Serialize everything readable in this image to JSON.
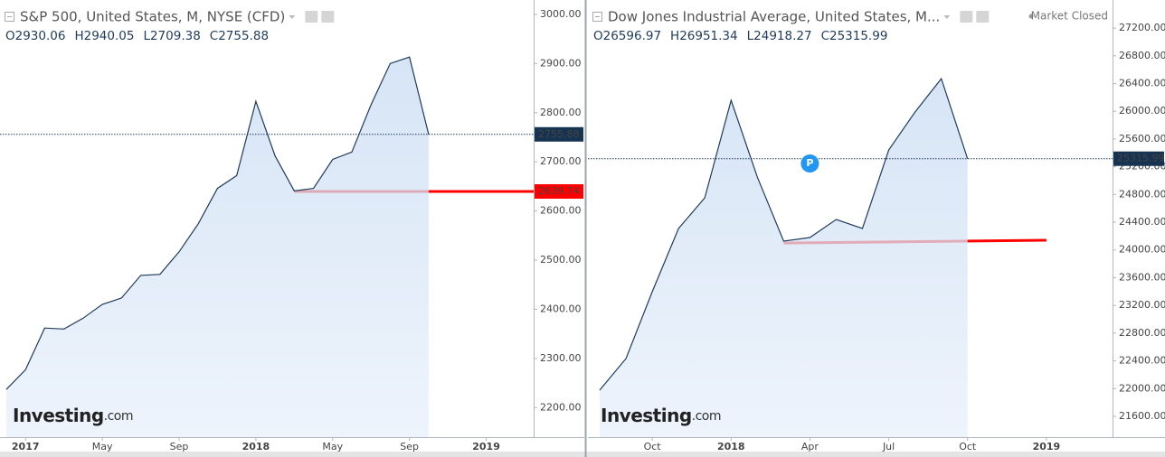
{
  "chart_data": [
    {
      "type": "area",
      "title": "S&P 500, United States, M, NYSE (CFD)",
      "ohlc": [
        "O2930.06",
        "H2940.05",
        "L2709.38",
        "C2755.88"
      ],
      "logo": "Investing",
      "logo_suffix": ".com",
      "x": [
        "2016-12",
        "2017-01",
        "2017-02",
        "2017-03",
        "2017-04",
        "2017-05",
        "2017-06",
        "2017-07",
        "2017-08",
        "2017-09",
        "2017-10",
        "2017-11",
        "2017-12",
        "2018-01",
        "2018-02",
        "2018-03",
        "2018-04",
        "2018-05",
        "2018-06",
        "2018-07",
        "2018-08",
        "2018-09",
        "2018-10"
      ],
      "values": [
        2237,
        2277,
        2362,
        2360,
        2382,
        2410,
        2423,
        2469,
        2471,
        2517,
        2574,
        2646,
        2672,
        2823,
        2712,
        2641,
        2646,
        2705,
        2720,
        2816,
        2900,
        2913,
        2755.88
      ],
      "color": "#1f3b5c",
      "xlim": [
        "2016-12",
        "2019-03"
      ],
      "xticks": [
        {
          "value": "2017-01",
          "label": "2017"
        },
        {
          "value": "2017-05",
          "label": "May"
        },
        {
          "value": "2017-09",
          "label": "Sep"
        },
        {
          "value": "2018-01",
          "label": "2018"
        },
        {
          "value": "2018-05",
          "label": "May"
        },
        {
          "value": "2018-09",
          "label": "Sep"
        },
        {
          "value": "2019-01",
          "label": "2019"
        }
      ],
      "ylim": [
        2140,
        3020
      ],
      "yticks": [
        {
          "value": 2200,
          "label": "2200.00"
        },
        {
          "value": 2300,
          "label": "2300.00"
        },
        {
          "value": 2400,
          "label": "2400.00"
        },
        {
          "value": 2500,
          "label": "2500.00"
        },
        {
          "value": 2600,
          "label": "2600.00"
        },
        {
          "value": 2700,
          "label": "2700.00"
        },
        {
          "value": 2800,
          "label": "2800.00"
        },
        {
          "value": 2900,
          "label": "2900.00"
        },
        {
          "value": 3000,
          "label": "3000.00"
        }
      ],
      "price_line": 2755.88,
      "support_line": {
        "x": [
          "2018-03"
        ],
        "values": [
          2639.74
        ],
        "color": "#ff0000"
      }
    },
    {
      "type": "area",
      "title": "Dow Jones Industrial Average, United States, M...",
      "status": "Market Closed",
      "marker_label": "P",
      "ohlc": [
        "O26596.97",
        "H26951.34",
        "L24918.27",
        "C25315.99"
      ],
      "logo": "Investing",
      "logo_suffix": ".com",
      "x": [
        "2017-08",
        "2017-09",
        "2017-10",
        "2017-11",
        "2017-12",
        "2018-01",
        "2018-02",
        "2018-03",
        "2018-04",
        "2018-05",
        "2018-06",
        "2018-07",
        "2018-08",
        "2018-09",
        "2018-10"
      ],
      "values": [
        21978,
        22434,
        23397,
        24309,
        24752,
        26158,
        25051,
        24127,
        24179,
        24439,
        24309,
        25442,
        25989,
        26471,
        25315.99
      ],
      "color": "#1f3b5c",
      "xlim": [
        "2017-08",
        "2019-03"
      ],
      "xticks": [
        {
          "value": "2017-10",
          "label": "Oct"
        },
        {
          "value": "2018-01",
          "label": "2018"
        },
        {
          "value": "2018-04",
          "label": "Apr"
        },
        {
          "value": "2018-07",
          "label": "Jul"
        },
        {
          "value": "2018-10",
          "label": "Oct"
        },
        {
          "value": "2019-01",
          "label": "2019"
        }
      ],
      "ylim": [
        21300,
        27540
      ],
      "yticks": [
        {
          "value": 21600,
          "label": "21600.00"
        },
        {
          "value": 22000,
          "label": "22000.00"
        },
        {
          "value": 22400,
          "label": "22400.00"
        },
        {
          "value": 22800,
          "label": "22800.00"
        },
        {
          "value": 23200,
          "label": "23200.00"
        },
        {
          "value": 23600,
          "label": "23600.00"
        },
        {
          "value": 24000,
          "label": "24000.00"
        },
        {
          "value": 24400,
          "label": "24400.00"
        },
        {
          "value": 24800,
          "label": "24800.00"
        },
        {
          "value": 25200,
          "label": "25200.00"
        },
        {
          "value": 25600,
          "label": "25600.00"
        },
        {
          "value": 26000,
          "label": "26000.00"
        },
        {
          "value": 26400,
          "label": "26400.00"
        },
        {
          "value": 26800,
          "label": "26800.00"
        },
        {
          "value": 27200,
          "label": "27200.00"
        }
      ],
      "price_line": 25315.99,
      "trend_line": {
        "x": [
          "2018-03",
          "2019-01"
        ],
        "values": [
          24100,
          24140
        ],
        "color": "#ff0000"
      }
    }
  ]
}
